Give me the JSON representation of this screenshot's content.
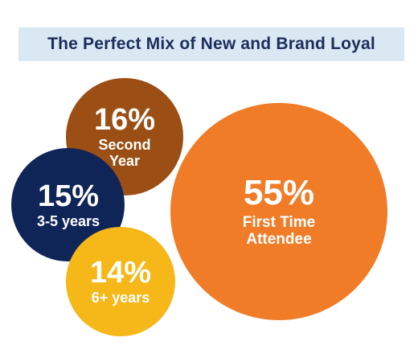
{
  "chart_data": {
    "type": "bubble",
    "title": "The Perfect Mix of New and Brand Loyal",
    "categories": [
      "First Time Attendee",
      "Second Year",
      "3-5 years",
      "6+ years"
    ],
    "values": [
      55,
      16,
      15,
      14
    ],
    "value_labels": [
      "55%",
      "16%",
      "15%",
      "14%"
    ],
    "label_lines": [
      [
        "First Time",
        "Attendee"
      ],
      [
        "Second",
        "Year"
      ],
      [
        "3-5 years"
      ],
      [
        "6+ years"
      ]
    ],
    "colors": [
      "#f07c28",
      "#9b4f14",
      "#0f2557",
      "#f6b718"
    ],
    "title_background": "#d9e8f3",
    "title_color": "#1b2d5c"
  }
}
